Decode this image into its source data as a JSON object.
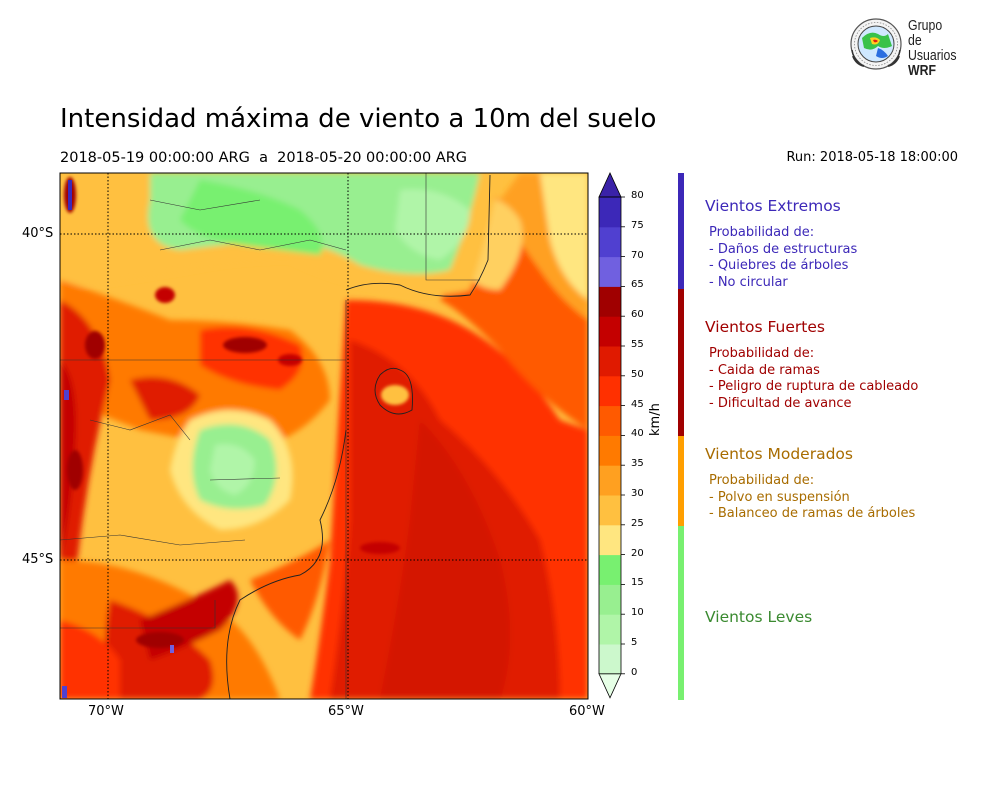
{
  "title": "Intensidad máxima de viento a 10m del suelo",
  "period": {
    "start": "2018-05-19 00:00:00 ARG",
    "sep": "a",
    "end": "2018-05-20 00:00:00 ARG"
  },
  "run": "Run: 2018-05-18 18:00:00",
  "logo": {
    "line1": "Grupo de",
    "line2": "Usuarios",
    "line3": "WRF"
  },
  "map": {
    "lat_labels": [
      "40°S",
      "45°S"
    ],
    "lon_labels": [
      "70°W",
      "65°W",
      "60°W"
    ],
    "extent": {
      "lon": [
        -71,
        -60
      ],
      "lat": [
        -48.3,
        -38.9
      ]
    }
  },
  "colorbar": {
    "unit": "km/h",
    "ticks": [
      "0",
      "5",
      "10",
      "15",
      "20",
      "25",
      "30",
      "35",
      "40",
      "45",
      "50",
      "55",
      "60",
      "65",
      "70",
      "75",
      "80"
    ],
    "colors": [
      "#e6ffe6",
      "#ccf8cc",
      "#b0f5a8",
      "#98ef90",
      "#78f070",
      "#ffe680",
      "#ffc040",
      "#ffa020",
      "#ff7a00",
      "#ff5a00",
      "#ff3000",
      "#e01a00",
      "#c40000",
      "#a00000",
      "#7060e0",
      "#5040d0",
      "#3c28b8",
      "#3a22a8"
    ]
  },
  "categories": [
    {
      "name": "Vientos Extremos",
      "color": "#3c28b8",
      "intro": "Probabilidad de:",
      "items": [
        "- Daños de estructuras",
        "- Quiebres de árboles",
        "- No circular"
      ]
    },
    {
      "name": "Vientos Fuertes",
      "color": "#a00000",
      "intro": "Probabilidad de:",
      "items": [
        "- Caida de ramas",
        "- Peligro de ruptura de cableado",
        "- Dificultad de avance"
      ]
    },
    {
      "name": "Vientos Moderados",
      "color": "#a86c00",
      "bar_color": "#ff9f00",
      "intro": "Probabilidad de:",
      "items": [
        "- Polvo en suspensión",
        "- Balanceo de ramas de árboles"
      ]
    },
    {
      "name": "Vientos Leves",
      "color": "#3a8a30",
      "bar_color": "#78f070",
      "intro": "",
      "items": []
    }
  ]
}
